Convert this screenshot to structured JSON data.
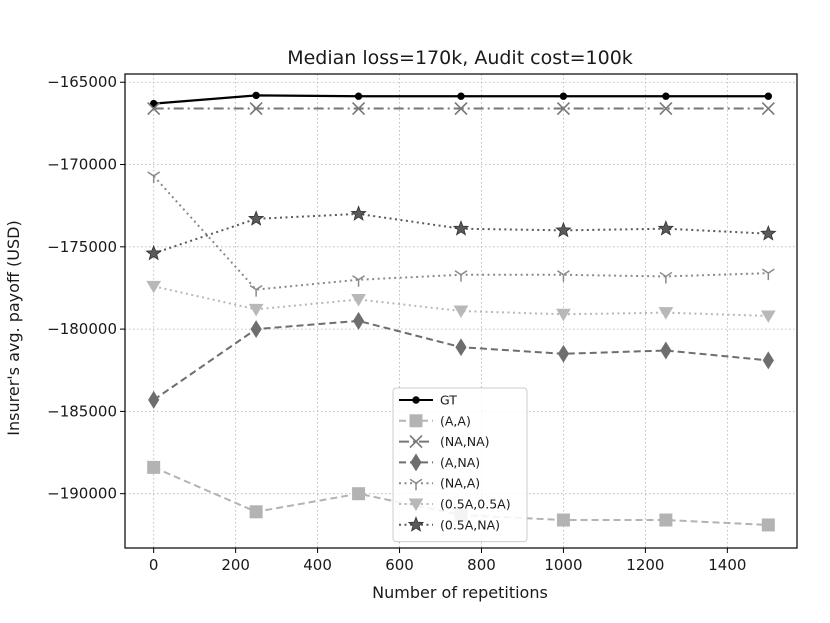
{
  "chart_data": {
    "type": "line",
    "title": "Median loss=170k, Audit cost=100k",
    "xlabel": "Number of repetitions",
    "ylabel": "Insurer's avg. payoff (USD)",
    "x": [
      0,
      250,
      500,
      750,
      1000,
      1250,
      1500
    ],
    "xlim": [
      -70,
      1570
    ],
    "ylim": [
      -193300,
      -164500
    ],
    "xticks": [
      0,
      200,
      400,
      600,
      800,
      1000,
      1200,
      1400
    ],
    "xtick_labels": [
      "0",
      "200",
      "400",
      "600",
      "800",
      "1000",
      "1200",
      "1400"
    ],
    "yticks": [
      -165000,
      -170000,
      -175000,
      -180000,
      -185000,
      -190000
    ],
    "ytick_labels": [
      "−165000",
      "−170000",
      "−175000",
      "−180000",
      "−185000",
      "−190000"
    ],
    "grid": true,
    "legend_position": "bottom-center",
    "series": [
      {
        "name": "GT",
        "values": [
          -166300,
          -165800,
          -165850,
          -165850,
          -165850,
          -165850,
          -165850
        ],
        "color": "#000000",
        "dash": "solid",
        "marker": "circle"
      },
      {
        "name": "(A,A)",
        "values": [
          -188400,
          -191100,
          -190000,
          -191300,
          -191600,
          -191600,
          -191900
        ],
        "color": "#b3b3b3",
        "dash": "dashed",
        "marker": "square"
      },
      {
        "name": "(NA,NA)",
        "values": [
          -166600,
          -166600,
          -166600,
          -166600,
          -166600,
          -166600,
          -166600
        ],
        "color": "#777777",
        "dash": "dashdot",
        "marker": "x"
      },
      {
        "name": "(A,NA)",
        "values": [
          -184300,
          -180000,
          -179500,
          -181100,
          -181500,
          -181300,
          -181900
        ],
        "color": "#6e6e6e",
        "dash": "dashed",
        "marker": "thin-diamond"
      },
      {
        "name": "(NA,A)",
        "values": [
          -170700,
          -177600,
          -177000,
          -176700,
          -176700,
          -176800,
          -176600
        ],
        "color": "#8a8a8a",
        "dash": "dotted",
        "marker": "tri-down"
      },
      {
        "name": "(0.5A,0.5A)",
        "values": [
          -177400,
          -178800,
          -178200,
          -178900,
          -179100,
          -179000,
          -179200
        ],
        "color": "#b8b8b8",
        "dash": "dotted",
        "marker": "triangle-down"
      },
      {
        "name": "(0.5A,NA)",
        "values": [
          -175400,
          -173300,
          -173000,
          -173900,
          -174000,
          -173900,
          -174200
        ],
        "color": "#5a5a5a",
        "dash": "dotted",
        "marker": "star"
      }
    ]
  }
}
